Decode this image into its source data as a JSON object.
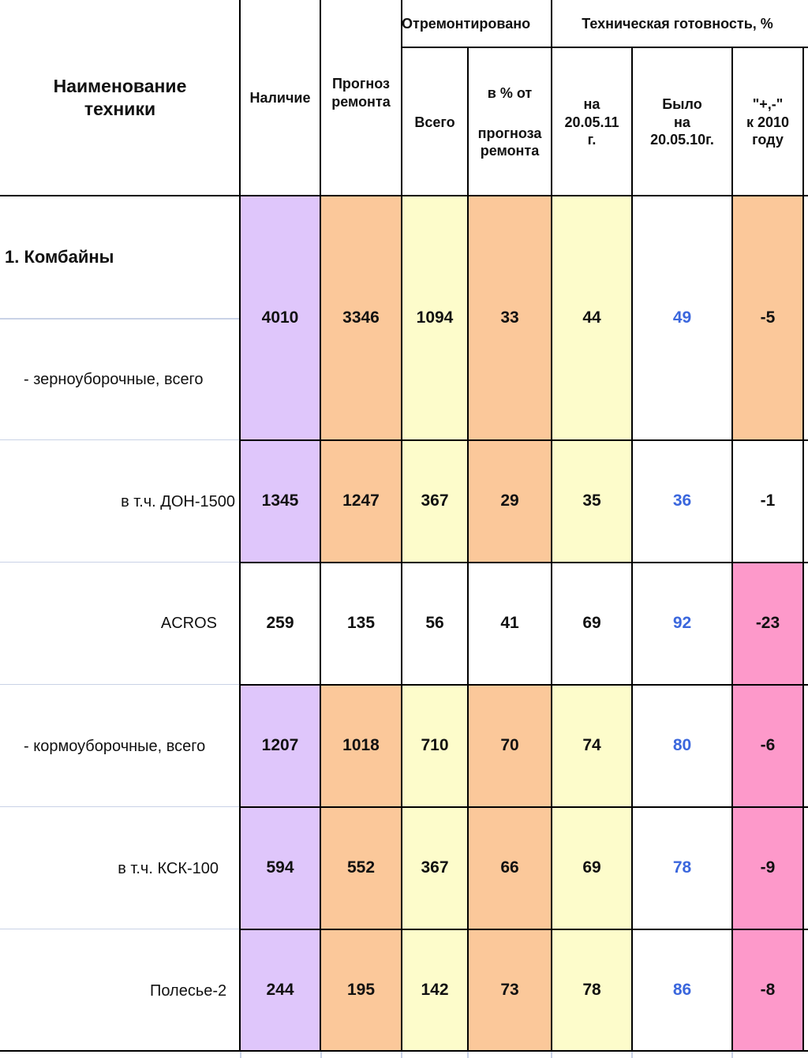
{
  "header": {
    "name_col": [
      "Наименование",
      "техники"
    ],
    "availability": "Наличие",
    "repair_forecast": [
      "Прогноз",
      "ремонта"
    ],
    "repaired_group": "Отремонтировано",
    "readiness_group": "Техническая готовность, %",
    "repaired_total": "Всего",
    "repaired_pct": [
      "в % от",
      "прогноза",
      "ремонта"
    ],
    "readiness_now": [
      "на",
      "20.05.11",
      "г."
    ],
    "readiness_was": [
      "Было",
      "на",
      "20.05.10г."
    ],
    "readiness_diff": [
      "\"+,-\"",
      "к 2010",
      "году"
    ]
  },
  "section_title": "1. Комбайны",
  "rows": [
    {
      "name": "- зерноуборочные, всего",
      "availability": "4010",
      "forecast": "3346",
      "repaired": "1094",
      "pct": "33",
      "now": "44",
      "was": "49",
      "diff": "-5"
    },
    {
      "name": "в т.ч. ДОН-1500",
      "availability": "1345",
      "forecast": "1247",
      "repaired": "367",
      "pct": "29",
      "now": "35",
      "was": "36",
      "diff": "-1"
    },
    {
      "name": "ACROS",
      "availability": "259",
      "forecast": "135",
      "repaired": "56",
      "pct": "41",
      "now": "69",
      "was": "92",
      "diff": "-23"
    },
    {
      "name": "- кормоуборочные, всего",
      "availability": "1207",
      "forecast": "1018",
      "repaired": "710",
      "pct": "70",
      "now": "74",
      "was": "80",
      "diff": "-6"
    },
    {
      "name": "в т.ч. КСК-100",
      "availability": "594",
      "forecast": "552",
      "repaired": "367",
      "pct": "66",
      "now": "69",
      "was": "78",
      "diff": "-9"
    },
    {
      "name": "Полесье-2",
      "availability": "244",
      "forecast": "195",
      "repaired": "142",
      "pct": "73",
      "now": "78",
      "was": "86",
      "diff": "-8"
    }
  ],
  "colors": {
    "purple": "#dfc6fb",
    "orange": "#fbc89a",
    "yellow": "#fdfccb",
    "pink": "#fd99ca",
    "blue_text": "#3b67dd"
  }
}
